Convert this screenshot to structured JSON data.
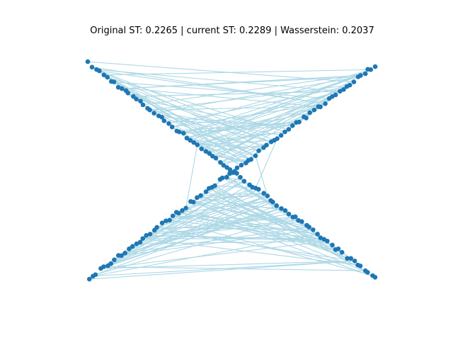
{
  "title": "Original ST: 0.2265 | current ST: 0.2289 | Wasserstein: 0.2037",
  "colors": {
    "node": "#1f77b4",
    "edge": "#add8e6",
    "background": "#ffffff"
  },
  "chart_data": {
    "type": "network-graph",
    "layout": "X-shaped point cloud (two crossing diagonal lines)",
    "xlim": [
      -1.0,
      1.0
    ],
    "ylim": [
      -1.0,
      1.0
    ],
    "node_count": 160,
    "axes_visible": false
  }
}
